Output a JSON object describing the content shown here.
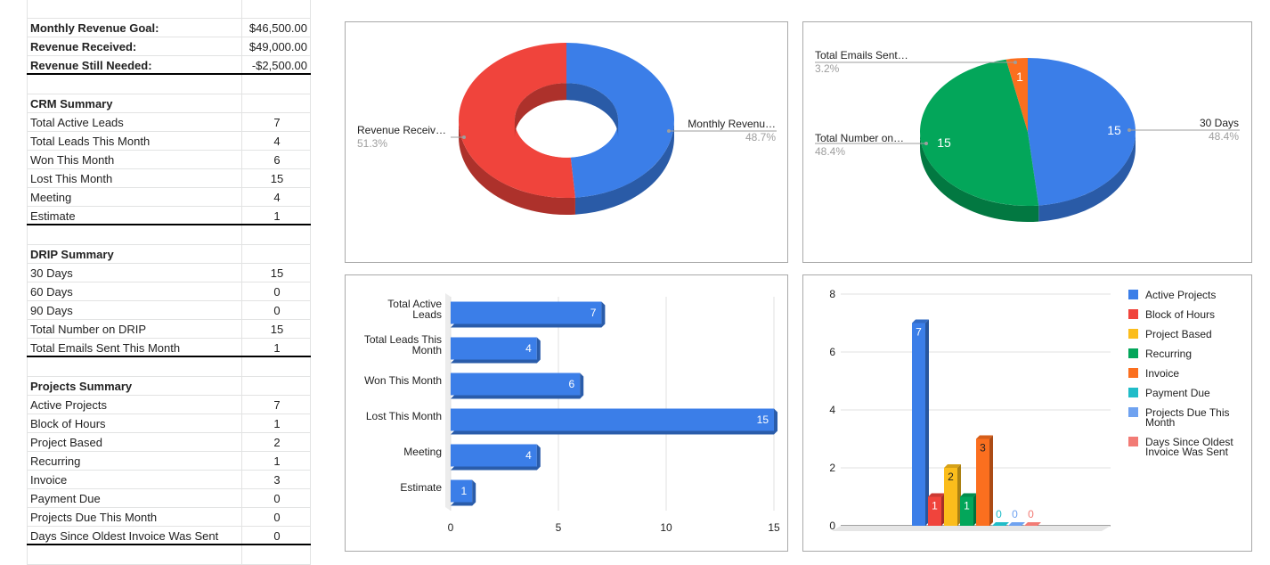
{
  "revenue_block": [
    {
      "label": "Monthly Revenue Goal:",
      "value": "$46,500.00"
    },
    {
      "label": "Revenue Received:",
      "value": "$49,000.00"
    },
    {
      "label": "Revenue Still Needed:",
      "value": "-$2,500.00"
    }
  ],
  "crm": {
    "title": "CRM Summary",
    "rows": [
      {
        "label": "Total Active Leads",
        "value": "7"
      },
      {
        "label": "Total Leads This Month",
        "value": "4"
      },
      {
        "label": "Won This Month",
        "value": "6"
      },
      {
        "label": "Lost This Month",
        "value": "15"
      },
      {
        "label": "Meeting",
        "value": "4"
      },
      {
        "label": "Estimate",
        "value": "1"
      }
    ]
  },
  "drip": {
    "title": "DRIP Summary",
    "rows": [
      {
        "label": "30 Days",
        "value": "15"
      },
      {
        "label": "60 Days",
        "value": "0"
      },
      {
        "label": "90 Days",
        "value": "0"
      },
      {
        "label": "Total Number on DRIP",
        "value": "15"
      },
      {
        "label": "Total Emails Sent This Month",
        "value": "1"
      }
    ]
  },
  "projects": {
    "title": "Projects Summary",
    "rows": [
      {
        "label": "Active Projects",
        "value": "7"
      },
      {
        "label": "Block of Hours",
        "value": "1"
      },
      {
        "label": "Project Based",
        "value": "2"
      },
      {
        "label": "Recurring",
        "value": "1"
      },
      {
        "label": "Invoice",
        "value": "3"
      },
      {
        "label": "Payment Due",
        "value": "0"
      },
      {
        "label": "Projects Due This Month",
        "value": "0"
      },
      {
        "label": "Days Since Oldest Invoice Was Sent",
        "value": "0"
      }
    ]
  },
  "chart_data": [
    {
      "type": "pie",
      "donut": true,
      "slices": [
        {
          "label": "Monthly Revenu…",
          "value": 46500,
          "percent": "48.7%",
          "color": "#3b7ee8"
        },
        {
          "label": "Revenue Receiv…",
          "value": 49000,
          "percent": "51.3%",
          "color": "#f0443c"
        }
      ]
    },
    {
      "type": "pie",
      "slices": [
        {
          "label": "30 Days",
          "value": 15,
          "percent": "48.4%",
          "color": "#3b7ee8",
          "data_label": "15"
        },
        {
          "label": "Total Number on…",
          "value": 15,
          "percent": "48.4%",
          "color": "#03a65a",
          "data_label": "15"
        },
        {
          "label": "Total Emails Sent…",
          "value": 1,
          "percent": "3.2%",
          "color": "#fb6f1f",
          "data_label": "1"
        }
      ]
    },
    {
      "type": "bar",
      "orientation": "horizontal",
      "categories": [
        [
          "Total Active",
          "Leads"
        ],
        [
          "Total Leads This",
          "Month"
        ],
        [
          "Won This Month"
        ],
        [
          "Lost This Month"
        ],
        [
          "Meeting"
        ],
        [
          "Estimate"
        ]
      ],
      "values": [
        7,
        4,
        6,
        15,
        4,
        1
      ],
      "data_labels": [
        "7",
        "4",
        "6",
        "15",
        "4",
        "1"
      ],
      "xlim": [
        0,
        15
      ],
      "xticks": [
        "0",
        "5",
        "10",
        "15"
      ],
      "color": "#3b7ee8",
      "grid": true
    },
    {
      "type": "bar",
      "ylim": [
        0,
        8
      ],
      "yticks": [
        "0",
        "2",
        "4",
        "6",
        "8"
      ],
      "legend_position": "right",
      "grid": true,
      "series": [
        {
          "name": "Active Projects",
          "value": 7,
          "data_label": "7",
          "color": "#3b7ee8"
        },
        {
          "name": "Block of Hours",
          "value": 1,
          "data_label": "1",
          "color": "#f0443c"
        },
        {
          "name": "Project Based",
          "value": 2,
          "data_label": "2",
          "color": "#fbbd1c"
        },
        {
          "name": "Recurring",
          "value": 1,
          "data_label": "1",
          "color": "#03a65a"
        },
        {
          "name": "Invoice",
          "value": 3,
          "data_label": "3",
          "color": "#fb6f1f"
        },
        {
          "name": "Payment Due",
          "value": 0,
          "data_label": "0",
          "color": "#20bcc8"
        },
        {
          "name": "Projects Due This Month",
          "value": 0,
          "data_label": "0",
          "color": "#6fa2f0"
        },
        {
          "name": "Days Since Oldest Invoice Was Sent",
          "value": 0,
          "data_label": "0",
          "color": "#f27b75"
        }
      ]
    }
  ]
}
